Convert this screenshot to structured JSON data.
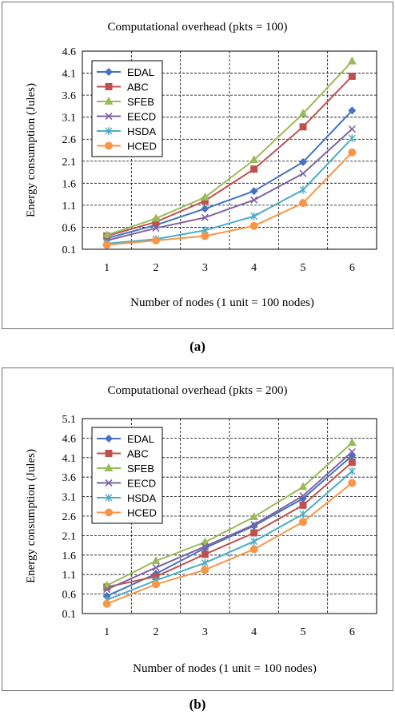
{
  "chart_data": [
    {
      "type": "line",
      "title": "Computational overhead (pkts = 100)",
      "xlabel": "Number of nodes (1 unit = 100 nodes)",
      "ylabel": "Energy consumption (Jules)",
      "x": [
        1,
        2,
        3,
        4,
        5,
        6
      ],
      "ylim": [
        0.1,
        4.6
      ],
      "yticks": [
        "0.1",
        "0.6",
        "1.1",
        "1.6",
        "2.1",
        "2.6",
        "3.1",
        "3.6",
        "4.1",
        "4.6"
      ],
      "grid": true,
      "legend_position": "top-left",
      "caption": "(a)",
      "series": [
        {
          "name": "EDAL",
          "color": "#4472c4",
          "marker": "diamond",
          "values": [
            0.35,
            0.65,
            1.02,
            1.42,
            2.08,
            3.25
          ]
        },
        {
          "name": "ABC",
          "color": "#c0504d",
          "marker": "square",
          "values": [
            0.4,
            0.72,
            1.2,
            1.92,
            2.88,
            4.03
          ]
        },
        {
          "name": "SFEB",
          "color": "#9bbb59",
          "marker": "triangle",
          "values": [
            0.42,
            0.8,
            1.28,
            2.13,
            3.18,
            4.37
          ]
        },
        {
          "name": "EECD",
          "color": "#8064a2",
          "marker": "x",
          "values": [
            0.3,
            0.58,
            0.82,
            1.22,
            1.82,
            2.83
          ]
        },
        {
          "name": "HSDA",
          "color": "#4bacc6",
          "marker": "star",
          "values": [
            0.23,
            0.33,
            0.53,
            0.85,
            1.45,
            2.62
          ]
        },
        {
          "name": "HCED",
          "color": "#f79646",
          "marker": "circle",
          "values": [
            0.2,
            0.3,
            0.4,
            0.63,
            1.15,
            2.3
          ]
        }
      ]
    },
    {
      "type": "line",
      "title": "Computational overhead (pkts = 200)",
      "xlabel": "Number of nodes (1 unit = 100 nodes)",
      "ylabel": "Energy consumption (Jules)",
      "x": [
        1,
        2,
        3,
        4,
        5,
        6
      ],
      "ylim": [
        0.1,
        5.1
      ],
      "yticks": [
        "0.1",
        "0.6",
        "1.1",
        "1.6",
        "2.1",
        "2.6",
        "3.1",
        "3.6",
        "4.1",
        "4.6",
        "5.1"
      ],
      "grid": true,
      "legend_position": "top-left",
      "caption": "(b)",
      "series": [
        {
          "name": "EDAL",
          "color": "#4472c4",
          "marker": "diamond",
          "values": [
            0.55,
            1.12,
            1.78,
            2.35,
            3.05,
            4.15
          ]
        },
        {
          "name": "ABC",
          "color": "#c0504d",
          "marker": "square",
          "values": [
            0.78,
            1.05,
            1.62,
            2.17,
            2.88,
            3.98
          ]
        },
        {
          "name": "SFEB",
          "color": "#9bbb59",
          "marker": "triangle",
          "values": [
            0.82,
            1.45,
            1.93,
            2.58,
            3.35,
            4.48
          ]
        },
        {
          "name": "EECD",
          "color": "#8064a2",
          "marker": "x",
          "values": [
            0.72,
            1.28,
            1.82,
            2.38,
            3.12,
            4.25
          ]
        },
        {
          "name": "HSDA",
          "color": "#4bacc6",
          "marker": "star",
          "values": [
            0.45,
            0.95,
            1.4,
            1.95,
            2.65,
            3.75
          ]
        },
        {
          "name": "HCED",
          "color": "#f79646",
          "marker": "circle",
          "values": [
            0.35,
            0.85,
            1.22,
            1.75,
            2.45,
            3.45
          ]
        }
      ]
    }
  ]
}
